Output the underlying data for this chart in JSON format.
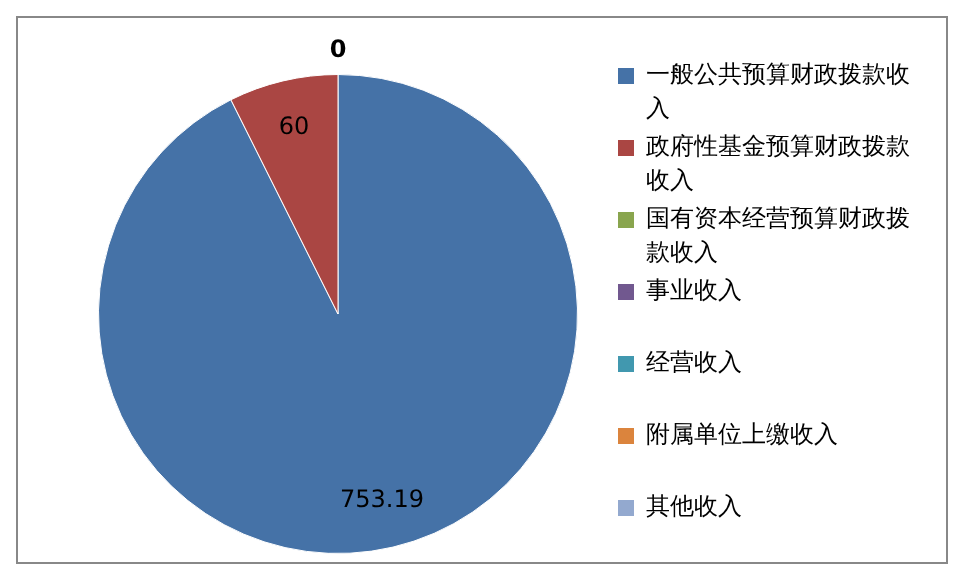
{
  "chart_data": {
    "type": "pie",
    "categories": [
      "一般公共预算财政拨款收入",
      "政府性基金预算财政拨款收入",
      "国有资本经营预算财政拨款收入",
      "事业收入",
      "经营收入",
      "附属单位上缴收入",
      "其他收入"
    ],
    "values": [
      753.19,
      60,
      0,
      0,
      0,
      0,
      0
    ],
    "colors": [
      "#4572a7",
      "#aa4643",
      "#89a54e",
      "#71588f",
      "#4198af",
      "#db843d",
      "#93a9cf"
    ],
    "value_labels": [
      "753.19",
      "60",
      "0",
      null,
      null,
      null,
      null
    ],
    "legend": "right"
  }
}
